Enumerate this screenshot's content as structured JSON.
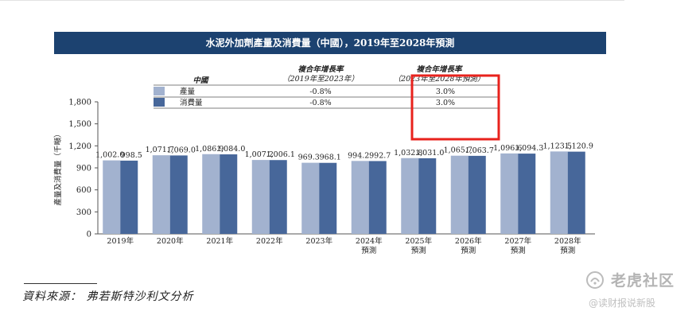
{
  "title": "水泥外加劑產量及消費量（中國），2019年至2028年預測",
  "chart_data": {
    "type": "bar",
    "ylabel": "產量及消費量（千噸）",
    "ylim": [
      0,
      1800
    ],
    "yticks": [
      "0",
      "300",
      "600",
      "900",
      "1,200",
      "1,500",
      "1,800"
    ],
    "categories": [
      [
        "2019年"
      ],
      [
        "2020年"
      ],
      [
        "2021年"
      ],
      [
        "2022年"
      ],
      [
        "2023年"
      ],
      [
        "2024年",
        "預測"
      ],
      [
        "2025年",
        "預測"
      ],
      [
        "2026年",
        "預測"
      ],
      [
        "2027年",
        "預測"
      ],
      [
        "2028年",
        "預測"
      ]
    ],
    "series": [
      {
        "name": "產量",
        "color": "#a2b2cf",
        "values": [
          1002.0,
          1071.7,
          1086.9,
          1007.2,
          969.3,
          994.2,
          1032.8,
          1065.7,
          1096.6,
          1123.5
        ],
        "labels": [
          "1,002.0",
          "1,071.7",
          "1,086.9",
          "1,007.2",
          "969.3",
          "994.2",
          "1,032.8",
          "1,065.7",
          "1,096.6",
          "1,123.5"
        ]
      },
      {
        "name": "消費量",
        "color": "#47679a",
        "values": [
          998.5,
          1069.0,
          1084.0,
          1006.1,
          968.1,
          992.7,
          1031.0,
          1063.7,
          1094.3,
          1120.9
        ],
        "labels": [
          "998.5",
          "1,069.0",
          "1,084.0",
          "1,006.1",
          "968.1",
          "992.7",
          "1,031.0",
          "1,063.7",
          "1,094.3",
          "1,120.9"
        ]
      }
    ],
    "legend_table": {
      "row_header": "中國",
      "col1": [
        "複合年增長率",
        "（2019年至2023年）"
      ],
      "col2": [
        "複合年增長率",
        "（2023年至2028年預測）"
      ],
      "rows": [
        {
          "label": "產量",
          "v1": "-0.8%",
          "v2": "3.0%"
        },
        {
          "label": "消費量",
          "v1": "-0.8%",
          "v2": "3.0%"
        }
      ]
    },
    "highlight_color": "#e8221c"
  },
  "source": "資料來源： 弗若斯特沙利文分析",
  "watermark": {
    "brand": "老虎社区",
    "sub": "@读财报说新股"
  }
}
